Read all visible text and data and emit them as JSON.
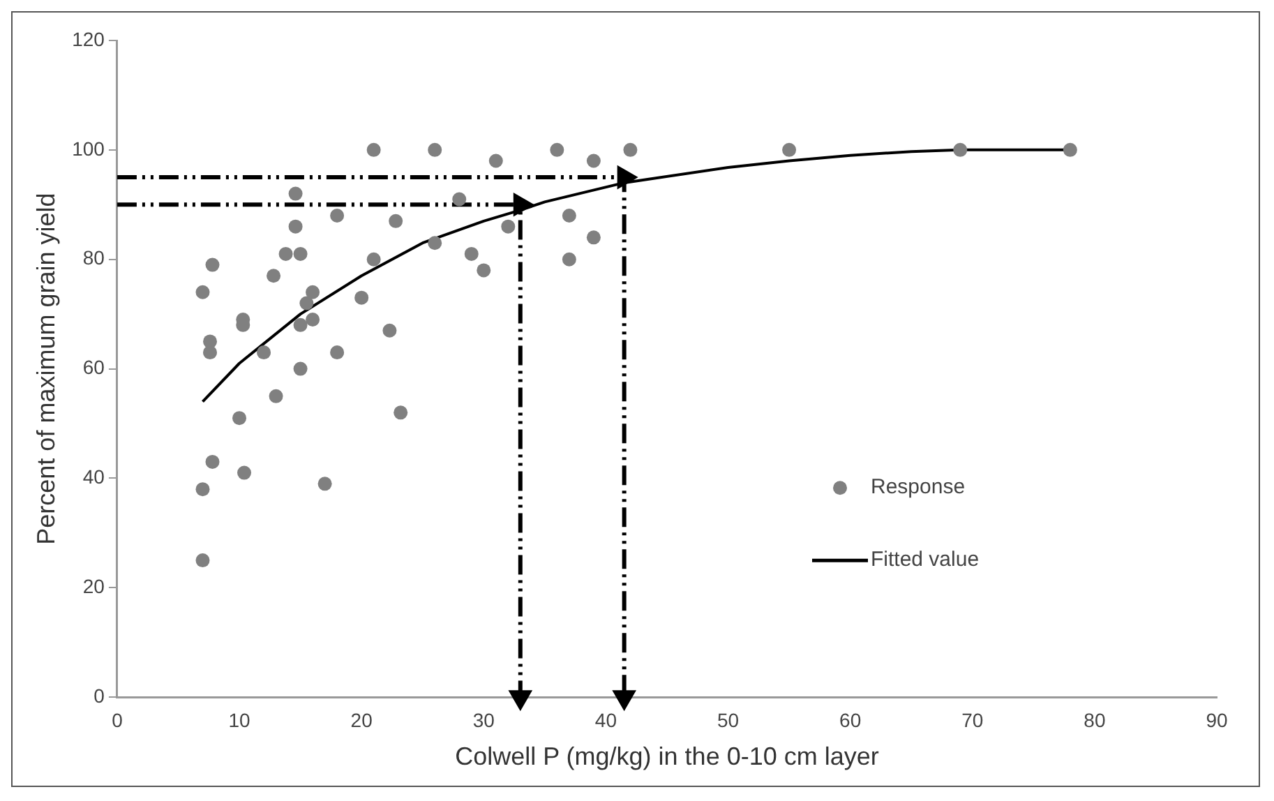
{
  "chart_data": {
    "type": "scatter",
    "xlabel": "Colwell P (mg/kg) in the 0-10 cm layer",
    "ylabel": "Percent of maximum grain yield",
    "xlim": [
      0,
      90
    ],
    "xticks": [
      0,
      10,
      20,
      30,
      40,
      50,
      60,
      70,
      80,
      90
    ],
    "ylim": [
      0,
      120
    ],
    "yticks": [
      0,
      20,
      40,
      60,
      80,
      100,
      120
    ],
    "grid": false,
    "legend": "bottom right",
    "series": [
      {
        "name": "Response",
        "marker": "circle",
        "color": "#808080",
        "x": [
          7,
          7,
          7,
          7.6,
          7.6,
          7.8,
          7.8,
          10,
          10.3,
          10.3,
          10.4,
          12,
          12.8,
          13,
          13.8,
          14.6,
          14.6,
          15,
          15,
          15,
          15.5,
          16,
          16,
          17,
          18,
          18,
          20,
          21,
          21,
          22.3,
          22.8,
          23.2,
          26,
          26,
          28,
          29,
          30,
          31,
          32,
          36,
          37,
          37,
          39,
          39,
          42,
          55,
          69,
          78
        ],
        "values": [
          74,
          38,
          25,
          65,
          63,
          79,
          43,
          51,
          69,
          68,
          41,
          63,
          77,
          55,
          81,
          92,
          86,
          81,
          68,
          60,
          72,
          74,
          69,
          39,
          88,
          63,
          73,
          100,
          80,
          67,
          87,
          52,
          100,
          83,
          91,
          81,
          78,
          98,
          86,
          100,
          88,
          80,
          98,
          84,
          100,
          100,
          100,
          100
        ]
      },
      {
        "name": "Fitted value",
        "type": "line",
        "marker": "none",
        "line_style": "solid",
        "color": "#000000",
        "x": [
          7,
          10,
          15,
          20,
          25,
          30,
          33,
          35,
          41.5,
          50,
          55,
          60,
          65,
          69,
          78
        ],
        "values": [
          54,
          61,
          70,
          77,
          83,
          87,
          89,
          90.5,
          94,
          96.8,
          98,
          99,
          99.7,
          100,
          100
        ]
      },
      {
        "type": "line",
        "marker": "triangle",
        "line_style": "dashed",
        "color": "#000000",
        "x": [
          0,
          33,
          33
        ],
        "values": [
          90,
          90,
          0
        ]
      },
      {
        "type": "line",
        "marker": "triangle",
        "line_style": "dashed",
        "color": "#000000",
        "x": [
          0,
          41.5,
          41.5
        ],
        "values": [
          95,
          95,
          0
        ]
      }
    ]
  }
}
